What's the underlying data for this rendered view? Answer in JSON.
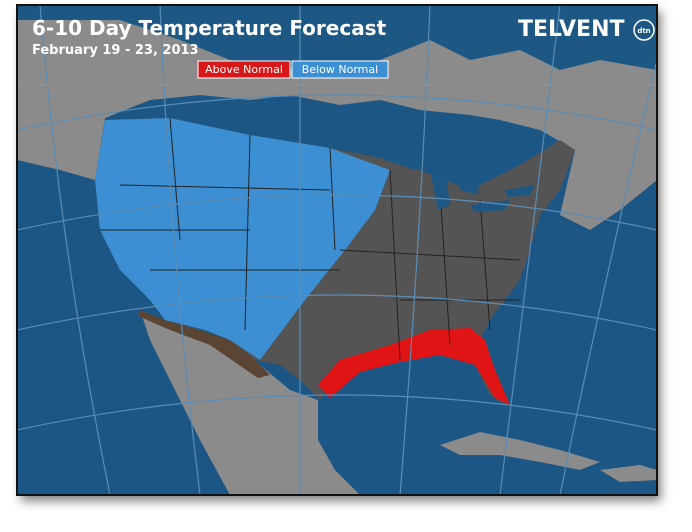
{
  "header": {
    "title": "6-10 Day Temperature Forecast",
    "subtitle": "February 19 - 23, 2013"
  },
  "legend": [
    {
      "label": "Above Normal"
    },
    {
      "label": "Below Normal"
    }
  ],
  "logo": {
    "name": "TELVENT",
    "badge": "dtn"
  }
}
